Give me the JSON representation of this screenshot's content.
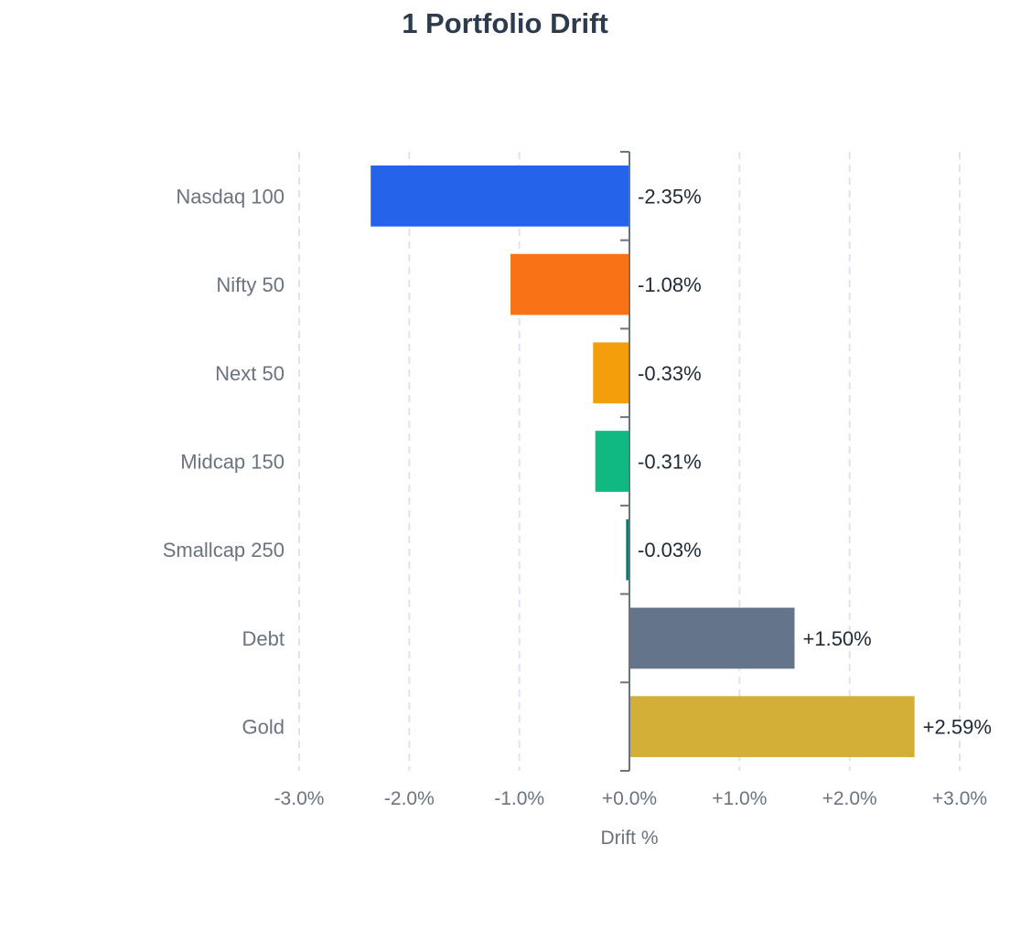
{
  "chart_data": {
    "type": "bar",
    "orientation": "horizontal",
    "title": "1 Portfolio Drift",
    "xlabel": "Drift %",
    "ylabel": "",
    "xlim": [
      -3.0,
      3.0
    ],
    "x_ticks": [
      -3.0,
      -2.0,
      -1.0,
      0.0,
      1.0,
      2.0,
      3.0
    ],
    "x_tick_labels": [
      "-3.0%",
      "-2.0%",
      "-1.0%",
      "+0.0%",
      "+1.0%",
      "+2.0%",
      "+3.0%"
    ],
    "grid": true,
    "legend": "none",
    "categories": [
      "Nasdaq 100",
      "Nifty 50",
      "Next 50",
      "Midcap 150",
      "Smallcap 250",
      "Debt",
      "Gold"
    ],
    "values": [
      -2.35,
      -1.08,
      -0.33,
      -0.31,
      -0.03,
      1.5,
      2.59
    ],
    "value_labels": [
      "-2.35%",
      "-1.08%",
      "-0.33%",
      "-0.31%",
      "-0.03%",
      "+1.50%",
      "+2.59%"
    ],
    "colors": [
      "#2563eb",
      "#f97316",
      "#f59e0b",
      "#10b981",
      "#0f766e",
      "#64748b",
      "#d4af37"
    ]
  }
}
